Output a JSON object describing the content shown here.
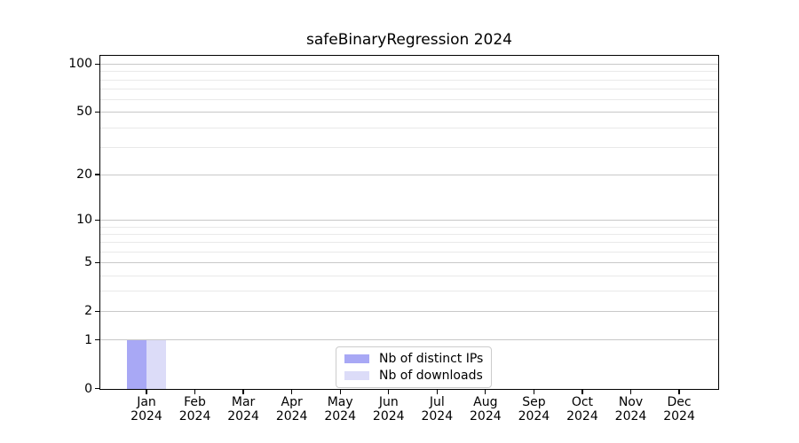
{
  "title": "safeBinaryRegression 2024",
  "chart_data": {
    "type": "bar",
    "title": "safeBinaryRegression 2024",
    "categories": [
      {
        "month": "Jan",
        "year": "2024"
      },
      {
        "month": "Feb",
        "year": "2024"
      },
      {
        "month": "Mar",
        "year": "2024"
      },
      {
        "month": "Apr",
        "year": "2024"
      },
      {
        "month": "May",
        "year": "2024"
      },
      {
        "month": "Jun",
        "year": "2024"
      },
      {
        "month": "Jul",
        "year": "2024"
      },
      {
        "month": "Aug",
        "year": "2024"
      },
      {
        "month": "Sep",
        "year": "2024"
      },
      {
        "month": "Oct",
        "year": "2024"
      },
      {
        "month": "Nov",
        "year": "2024"
      },
      {
        "month": "Dec",
        "year": "2024"
      }
    ],
    "series": [
      {
        "name": "Nb of distinct IPs",
        "color": "#a8a8f5",
        "values": [
          1,
          0,
          0,
          0,
          0,
          0,
          0,
          0,
          0,
          0,
          0,
          0
        ]
      },
      {
        "name": "Nb of downloads",
        "color": "#dcdcf8",
        "values": [
          1,
          0,
          0,
          0,
          0,
          0,
          0,
          0,
          0,
          0,
          0,
          0
        ]
      }
    ],
    "xlabel": "",
    "ylabel": "",
    "yscale": "log1p",
    "ylim": [
      0,
      112
    ],
    "yticks_major": [
      0,
      1,
      2,
      5,
      10,
      20,
      50,
      100
    ],
    "yticks_minor": [
      3,
      4,
      6,
      7,
      8,
      9,
      30,
      40,
      60,
      70,
      80,
      90
    ],
    "grid": "both",
    "legend_position": "lower center"
  },
  "colors": {
    "background": "#ffffff",
    "spine": "#000000",
    "grid_major": "#c8c8c8",
    "grid_minor": "#e9e9e9",
    "legend_border": "#cccccc",
    "text": "#000000"
  }
}
